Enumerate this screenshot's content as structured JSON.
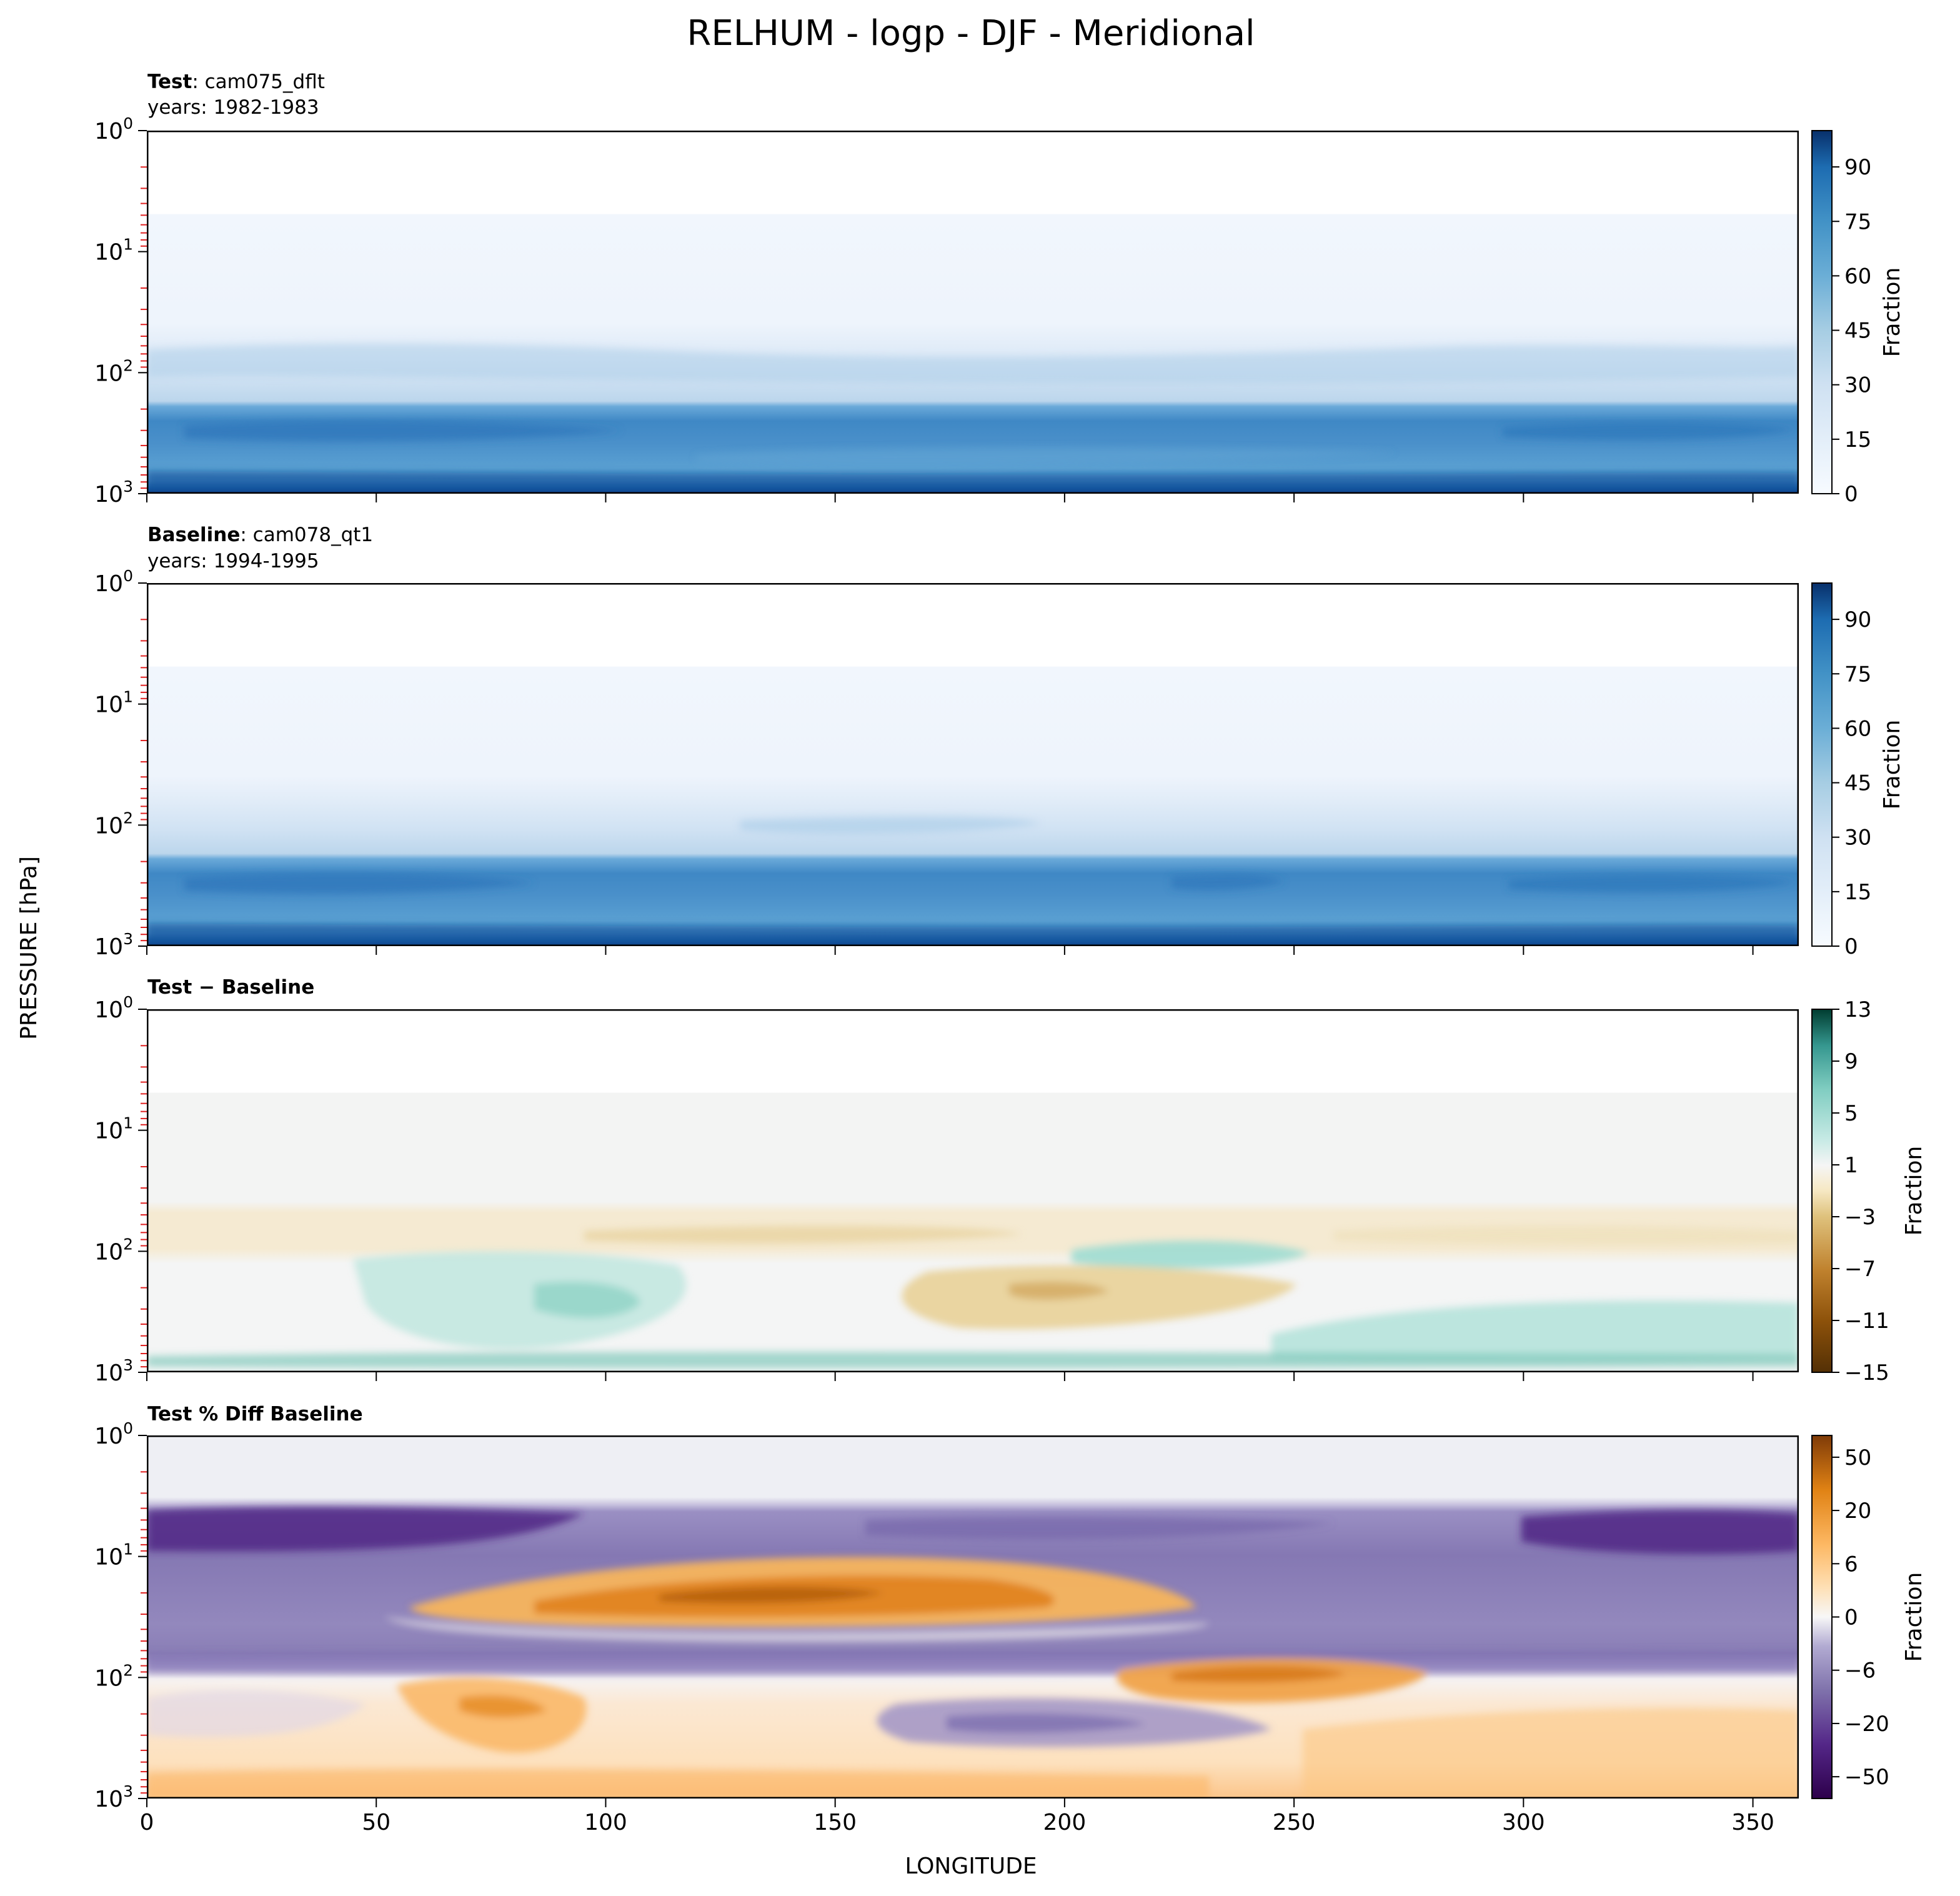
{
  "title": "RELHUM - logp - DJF - Meridional",
  "x_axis_label": "LONGITUDE",
  "y_axis_label": "PRESSURE [hPa]",
  "x_ticks": [
    "0",
    "50",
    "100",
    "150",
    "200",
    "250",
    "300",
    "350"
  ],
  "colorbar_label": "Fraction",
  "chart_data": [
    {
      "type": "heatmap",
      "panel": "test",
      "header_bold": "Test",
      "header_rest": ": cam075_dflt",
      "years": "years: 1982-1983",
      "xlim": [
        0,
        360
      ],
      "ylim": [
        1000,
        1
      ],
      "y_scale": "log",
      "colormap": "Blues",
      "colorbar_ticks": [
        "0",
        "15",
        "30",
        "45",
        "60",
        "75",
        "90"
      ],
      "colorbar_range": [
        0,
        100
      ],
      "structure": [
        {
          "pressure_hPa": [
            1,
            5
          ],
          "value": "no data"
        },
        {
          "pressure_hPa": [
            5,
            40
          ],
          "value": 4
        },
        {
          "pressure_hPa": [
            40,
            200
          ],
          "value": [
            15,
            35
          ]
        },
        {
          "pressure_hPa": [
            200,
            350
          ],
          "value": 65
        },
        {
          "pressure_hPa": [
            350,
            900
          ],
          "value": 55
        },
        {
          "pressure_hPa": [
            900,
            1000
          ],
          "value": 90
        }
      ]
    },
    {
      "type": "heatmap",
      "panel": "baseline",
      "header_bold": "Baseline",
      "header_rest": ": cam078_qt1",
      "years": "years: 1994-1995",
      "xlim": [
        0,
        360
      ],
      "ylim": [
        1000,
        1
      ],
      "y_scale": "log",
      "colormap": "Blues",
      "colorbar_ticks": [
        "0",
        "15",
        "30",
        "45",
        "60",
        "75",
        "90"
      ],
      "colorbar_range": [
        0,
        100
      ],
      "structure": [
        {
          "pressure_hPa": [
            1,
            5
          ],
          "value": "no data"
        },
        {
          "pressure_hPa": [
            5,
            40
          ],
          "value": 4
        },
        {
          "pressure_hPa": [
            40,
            200
          ],
          "value": [
            15,
            35
          ]
        },
        {
          "pressure_hPa": [
            200,
            350
          ],
          "value": 65
        },
        {
          "pressure_hPa": [
            350,
            900
          ],
          "value": 55
        },
        {
          "pressure_hPa": [
            900,
            1000
          ],
          "value": 90
        }
      ]
    },
    {
      "type": "heatmap",
      "panel": "difference",
      "header_bold": "Test − Baseline",
      "header_rest": "",
      "years": "",
      "xlim": [
        0,
        360
      ],
      "ylim": [
        1000,
        1
      ],
      "y_scale": "log",
      "colormap": "BrBG",
      "colorbar_ticks": [
        "13",
        "9",
        "5",
        "1",
        "−3",
        "−7",
        "−11",
        "−15"
      ],
      "colorbar_range": [
        -15,
        13
      ],
      "features": [
        {
          "lon": [
            0,
            360
          ],
          "pressure_hPa": [
            5,
            50
          ],
          "value": 0
        },
        {
          "lon": [
            0,
            70
          ],
          "pressure_hPa": [
            50,
            200
          ],
          "value": -2
        },
        {
          "lon": [
            95,
            210
          ],
          "pressure_hPa": [
            60,
            90
          ],
          "value": -4
        },
        {
          "lon": [
            200,
            250
          ],
          "pressure_hPa": [
            80,
            150
          ],
          "value": 4
        },
        {
          "lon": [
            170,
            250
          ],
          "pressure_hPa": [
            200,
            500
          ],
          "value": -5
        },
        {
          "lon": [
            50,
            140
          ],
          "pressure_hPa": [
            100,
            800
          ],
          "value": 3
        },
        {
          "lon": [
            0,
            360
          ],
          "pressure_hPa": [
            850,
            1000
          ],
          "value": 5
        },
        {
          "lon": [
            230,
            360
          ],
          "pressure_hPa": [
            300,
            900
          ],
          "value": 3
        }
      ]
    },
    {
      "type": "heatmap",
      "panel": "percent_difference",
      "header_bold": "Test % Diff Baseline",
      "header_rest": "",
      "years": "",
      "xlim": [
        0,
        360
      ],
      "ylim": [
        1000,
        1
      ],
      "y_scale": "log",
      "colormap": "PuOr_r",
      "colorbar_ticks": [
        "50",
        "20",
        "6",
        "0",
        "−6",
        "−20",
        "−50"
      ],
      "colorbar_range": [
        -80,
        80
      ],
      "features": [
        {
          "lon": [
            0,
            360
          ],
          "pressure_hPa": [
            1,
            3.5
          ],
          "value": 0
        },
        {
          "lon": [
            0,
            110
          ],
          "pressure_hPa": [
            3.5,
            12
          ],
          "value": -50
        },
        {
          "lon": [
            310,
            360
          ],
          "pressure_hPa": [
            3.5,
            12
          ],
          "value": -50
        },
        {
          "lon": [
            80,
            225
          ],
          "pressure_hPa": [
            12,
            40
          ],
          "value": 30
        },
        {
          "lon": [
            0,
            360
          ],
          "pressure_hPa": [
            40,
            90
          ],
          "value": -15
        },
        {
          "lon": [
            210,
            280
          ],
          "pressure_hPa": [
            90,
            150
          ],
          "value": 25
        },
        {
          "lon": [
            40,
            120
          ],
          "pressure_hPa": [
            100,
            300
          ],
          "value": 10
        },
        {
          "lon": [
            150,
            250
          ],
          "pressure_hPa": [
            150,
            400
          ],
          "value": -12
        },
        {
          "lon": [
            0,
            360
          ],
          "pressure_hPa": [
            300,
            1000
          ],
          "value": 8
        }
      ]
    }
  ]
}
